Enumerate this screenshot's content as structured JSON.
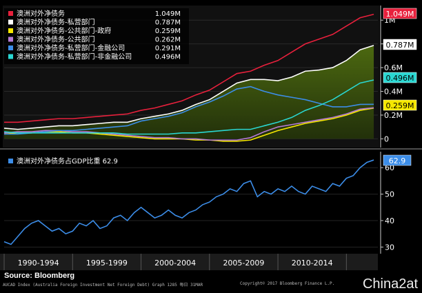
{
  "source": "Source: Bloomberg",
  "footer_left": "AUCAD Index (Australia Foreign Investment Net Foreign Debt) Graph 1285  每日 31MAR",
  "footer_right": "Copyright© 2017 Bloomberg Finance L.P.",
  "watermark": "China2at",
  "chart_data": [
    {
      "type": "area",
      "panel": "top",
      "x": [
        1990,
        1991,
        1992,
        1993,
        1994,
        1995,
        1996,
        1997,
        1998,
        1999,
        2000,
        2001,
        2002,
        2003,
        2004,
        2005,
        2006,
        2007,
        2008,
        2009,
        2010,
        2011,
        2012,
        2013,
        2014,
        2015,
        2016,
        2017
      ],
      "ylim": [
        -0.05,
        1.1
      ],
      "yticks": [
        {
          "value": 0,
          "label": "0"
        },
        {
          "value": 0.2,
          "label": "0.2M"
        },
        {
          "value": 0.4,
          "label": "0.4M"
        },
        {
          "value": 0.6,
          "label": "0.6M"
        },
        {
          "value": 0.8,
          "label": "0.8M"
        },
        {
          "value": 1.0,
          "label": "1M"
        }
      ],
      "legend_position": "top-left",
      "series": [
        {
          "name": "澳洲对外净债务",
          "last": "1.049M",
          "color": "#e8203c",
          "fill": false,
          "values": [
            0.14,
            0.14,
            0.15,
            0.16,
            0.17,
            0.17,
            0.18,
            0.19,
            0.2,
            0.21,
            0.24,
            0.26,
            0.29,
            0.32,
            0.37,
            0.41,
            0.48,
            0.55,
            0.57,
            0.62,
            0.66,
            0.73,
            0.8,
            0.84,
            0.88,
            0.95,
            1.02,
            1.049
          ]
        },
        {
          "name": "澳洲对外净债务-私营部门",
          "last": "0.787M",
          "color": "#ffffff",
          "fill": true,
          "values": [
            0.09,
            0.08,
            0.09,
            0.1,
            0.11,
            0.11,
            0.12,
            0.13,
            0.14,
            0.14,
            0.17,
            0.19,
            0.21,
            0.24,
            0.29,
            0.33,
            0.4,
            0.47,
            0.5,
            0.5,
            0.49,
            0.52,
            0.57,
            0.58,
            0.6,
            0.66,
            0.75,
            0.787
          ]
        },
        {
          "name": "澳洲对外净债务-公共部门-政府",
          "last": "0.259M",
          "color": "#f5e700",
          "fill": false,
          "values": [
            0.04,
            0.05,
            0.05,
            0.06,
            0.06,
            0.05,
            0.05,
            0.04,
            0.03,
            0.02,
            0.01,
            0.0,
            0.0,
            0.0,
            -0.01,
            -0.01,
            -0.02,
            -0.02,
            -0.01,
            0.03,
            0.07,
            0.1,
            0.13,
            0.15,
            0.17,
            0.2,
            0.24,
            0.259
          ]
        },
        {
          "name": "澳洲对外净债务-公共部门",
          "last": "0.262M",
          "color": "#b57bd6",
          "fill": false,
          "values": [
            0.05,
            0.06,
            0.06,
            0.07,
            0.07,
            0.06,
            0.06,
            0.05,
            0.04,
            0.03,
            0.02,
            0.01,
            0.01,
            0.0,
            0.0,
            -0.01,
            -0.01,
            -0.01,
            0.01,
            0.06,
            0.1,
            0.12,
            0.14,
            0.16,
            0.18,
            0.21,
            0.25,
            0.262
          ]
        },
        {
          "name": "澳洲对外净债务-私营部门-金融公司",
          "last": "0.291M",
          "color": "#3c8de8",
          "fill": false,
          "values": [
            0.04,
            0.04,
            0.05,
            0.06,
            0.07,
            0.07,
            0.08,
            0.09,
            0.1,
            0.11,
            0.15,
            0.17,
            0.19,
            0.22,
            0.27,
            0.31,
            0.36,
            0.42,
            0.44,
            0.4,
            0.37,
            0.35,
            0.33,
            0.3,
            0.27,
            0.27,
            0.29,
            0.291
          ]
        },
        {
          "name": "澳洲对外净债务-私营部门-非金融公司",
          "last": "0.496M",
          "color": "#2ad7d2",
          "fill": false,
          "values": [
            0.06,
            0.05,
            0.05,
            0.05,
            0.05,
            0.05,
            0.05,
            0.05,
            0.05,
            0.04,
            0.04,
            0.04,
            0.04,
            0.05,
            0.05,
            0.06,
            0.07,
            0.08,
            0.08,
            0.11,
            0.14,
            0.18,
            0.24,
            0.28,
            0.33,
            0.4,
            0.47,
            0.496
          ]
        }
      ]
    },
    {
      "type": "line",
      "panel": "bottom",
      "x": [
        1990,
        1990.5,
        1991,
        1991.5,
        1992,
        1992.5,
        1993,
        1993.5,
        1994,
        1994.5,
        1995,
        1995.5,
        1996,
        1996.5,
        1997,
        1997.5,
        1998,
        1998.5,
        1999,
        1999.5,
        2000,
        2000.5,
        2001,
        2001.5,
        2002,
        2002.5,
        2003,
        2003.5,
        2004,
        2004.5,
        2005,
        2005.5,
        2006,
        2006.5,
        2007,
        2007.5,
        2008,
        2008.5,
        2009,
        2009.5,
        2010,
        2010.5,
        2011,
        2011.5,
        2012,
        2012.5,
        2013,
        2013.5,
        2014,
        2014.5,
        2015,
        2015.5,
        2016,
        2016.5,
        2017
      ],
      "values": [
        32,
        31,
        34,
        37,
        39,
        40,
        38,
        36,
        37,
        35,
        36,
        39,
        38,
        40,
        37,
        38,
        41,
        42,
        40,
        43,
        45,
        43,
        41,
        42,
        44,
        42,
        41,
        43,
        44,
        46,
        47,
        49,
        50,
        52,
        51,
        54,
        55,
        49,
        51,
        50,
        52,
        51,
        53,
        51,
        50,
        53,
        52,
        51,
        54,
        53,
        56,
        57,
        60,
        62,
        62.9
      ],
      "ylim": [
        28,
        65
      ],
      "yticks": [
        {
          "value": 30,
          "label": "30"
        },
        {
          "value": 40,
          "label": "40"
        },
        {
          "value": 50,
          "label": "50"
        },
        {
          "value": 60,
          "label": "60"
        }
      ],
      "legend_position": "top-left",
      "series_name": "澳洲对外净债务占GDP比重",
      "last": "62.9",
      "color": "#3c8de8"
    }
  ],
  "x_axis": {
    "tick_labels": [
      "1990-1994",
      "1995-1999",
      "2000-2004",
      "2005-2009",
      "2010-2014"
    ]
  }
}
